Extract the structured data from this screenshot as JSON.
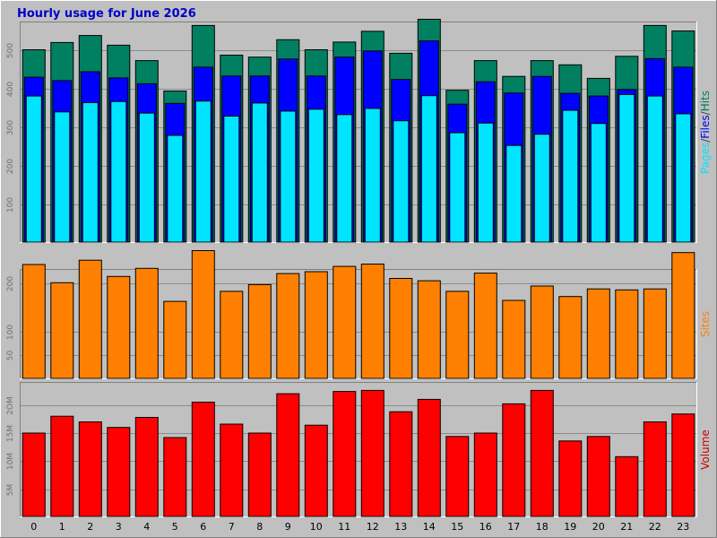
{
  "chart_data": {
    "type": "bar",
    "title": "Hourly usage for June 2026",
    "categories": [
      "0",
      "1",
      "2",
      "3",
      "4",
      "5",
      "6",
      "7",
      "8",
      "9",
      "10",
      "11",
      "12",
      "13",
      "14",
      "15",
      "16",
      "17",
      "18",
      "19",
      "20",
      "21",
      "22",
      "23"
    ],
    "panels": [
      {
        "id": "traffic",
        "side_label": [
          {
            "text": "Pages",
            "color": "#00e4ff"
          },
          {
            "text": "/",
            "color": "#404040"
          },
          {
            "text": "Files",
            "color": "#0000ff"
          },
          {
            "text": "/",
            "color": "#404040"
          },
          {
            "text": "Hits",
            "color": "#007a5c"
          }
        ],
        "ylim": [
          0,
          565
        ],
        "yticks": [
          100,
          200,
          300,
          400,
          500
        ],
        "ytick_labels": [
          "100",
          "200",
          "300",
          "400",
          "500"
        ],
        "series": [
          {
            "name": "Hits",
            "color": "#008060",
            "values": [
              501,
              520,
              538,
              513,
              473,
              394,
              564,
              487,
              482,
              527,
              501,
              521,
              549,
              492,
              580,
              396,
              473,
              432,
              473,
              462,
              427,
              484,
              564,
              550
            ]
          },
          {
            "name": "Files",
            "color": "#0000ff",
            "values": [
              430,
              421,
              444,
              428,
              413,
              362,
              456,
              433,
              433,
              477,
              433,
              482,
              498,
              424,
              524,
              360,
              418,
              389,
              432,
              388,
              381,
              398,
              478,
              456
            ]
          },
          {
            "name": "Pages",
            "color": "#00e4ff",
            "values": [
              381,
              340,
              364,
              367,
              337,
              279,
              368,
              329,
              363,
              342,
              347,
              333,
              349,
              317,
              382,
              286,
              311,
              253,
              282,
              344,
              310,
              385,
              381,
              335
            ]
          }
        ]
      },
      {
        "id": "sites",
        "side_label": [
          {
            "text": "Sites",
            "color": "#ff8000"
          }
        ],
        "ylim": [
          0,
          270
        ],
        "yticks": [
          50,
          100,
          200
        ],
        "ytick_labels": [
          "50",
          "100",
          "200"
        ],
        "series": [
          {
            "name": "Sites",
            "color": "#ff8000",
            "values": [
              240,
              202,
              249,
              215,
              232,
              163,
              269,
              184,
              198,
              221,
              225,
              236,
              241,
              211,
              206,
              184,
              222,
              165,
              195,
              173,
              189,
              187,
              189,
              265
            ]
          }
        ]
      },
      {
        "id": "volume",
        "side_label": [
          {
            "text": "Volume",
            "color": "#cc0000"
          }
        ],
        "ylim": [
          0,
          23.3
        ],
        "yticks": [
          5,
          10,
          15,
          20
        ],
        "ytick_labels": [
          "5M",
          "10M",
          "15M",
          "2OM"
        ],
        "series": [
          {
            "name": "Volume",
            "color": "#ff0000",
            "values": [
              15.0,
              18.0,
              17.0,
              16.0,
              17.8,
              14.2,
              20.5,
              16.6,
              15.0,
              22.0,
              16.4,
              22.4,
              22.6,
              18.8,
              21.0,
              14.4,
              15.0,
              20.2,
              22.6,
              13.6,
              14.4,
              10.8,
              17.0,
              18.4
            ]
          }
        ]
      }
    ]
  }
}
